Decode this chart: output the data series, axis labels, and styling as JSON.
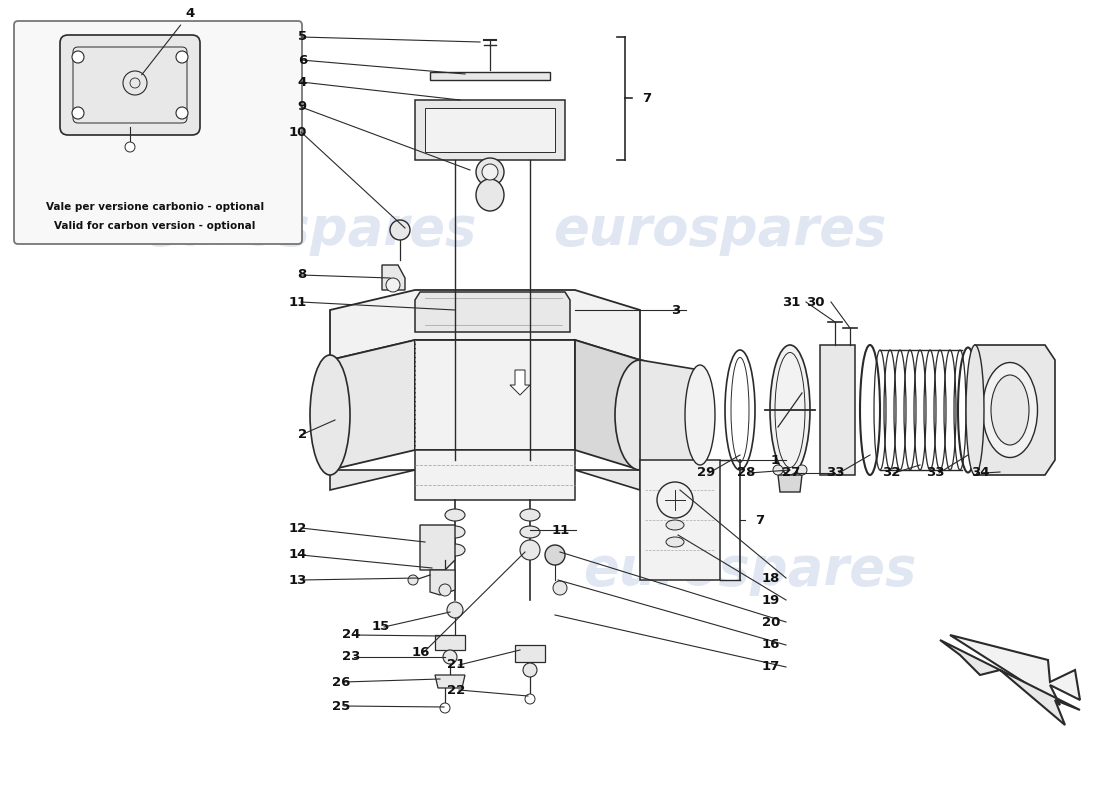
{
  "background_color": "#ffffff",
  "watermark_text": "eurospares",
  "watermark_color": "#c8d4e8",
  "watermark_alpha": 0.55,
  "inset_text_line1": "Vale per versione carbonio - optional",
  "inset_text_line2": "Valid for carbon version - optional",
  "line_color": "#2a2a2a",
  "text_color": "#111111",
  "fill_light": "#f2f2f2",
  "fill_mid": "#e8e8e8",
  "fill_dark": "#d8d8d8",
  "label_fontsize": 9.5,
  "watermark_fontsize": 38
}
